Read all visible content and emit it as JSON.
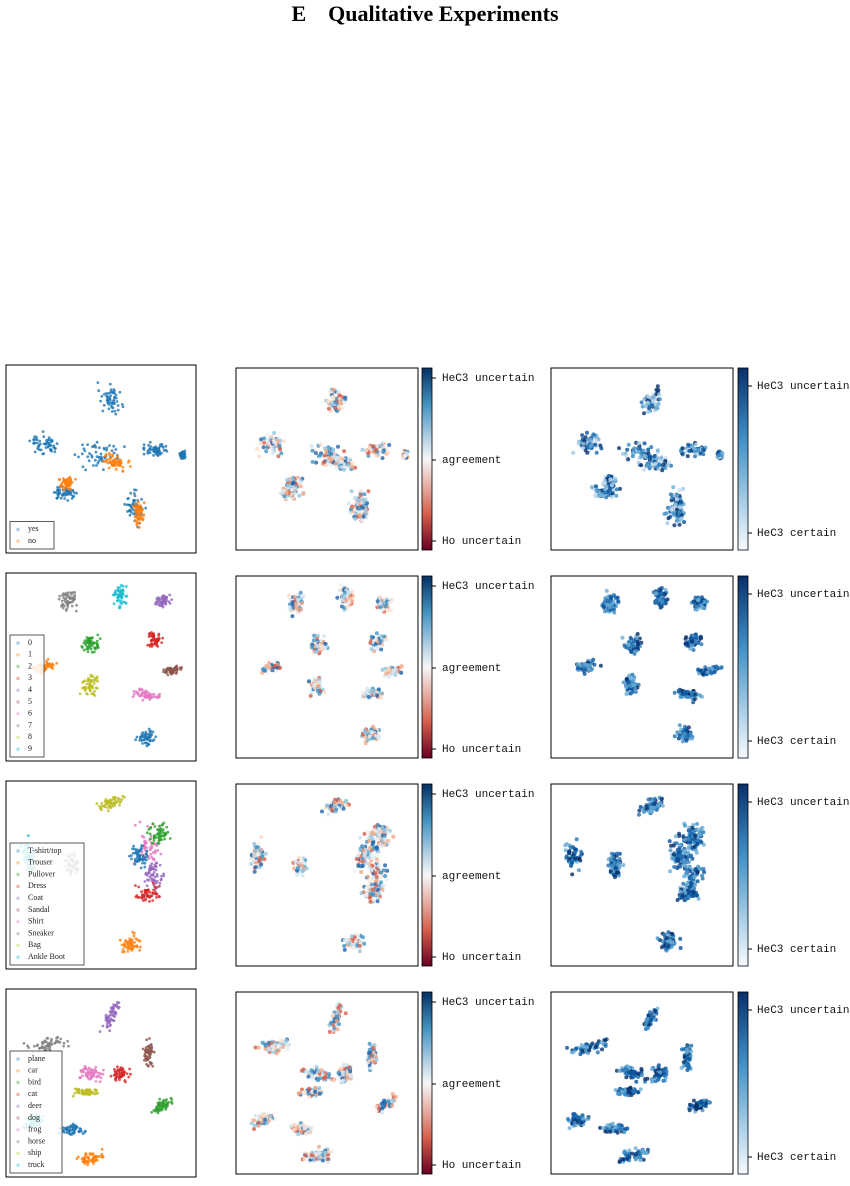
{
  "header": {
    "title": "E    Qualitative Experiments"
  },
  "rows": [
    {
      "legend": [
        "yes",
        "no"
      ]
    },
    {
      "legend": [
        "0",
        "1",
        "2",
        "3",
        "4",
        "5",
        "6",
        "7",
        "8",
        "9"
      ]
    },
    {
      "legend": [
        "T-shirt/top",
        "Trouser",
        "Pullover",
        "Dress",
        "Coat",
        "Sandal",
        "Shirt",
        "Sneaker",
        "Bag",
        "Ankle Boot"
      ]
    },
    {
      "legend": [
        "plane",
        "car",
        "bird",
        "cat",
        "deer",
        "dog",
        "frog",
        "horse",
        "ship",
        "truck"
      ]
    }
  ],
  "colorbars": {
    "disagreement": {
      "top": "HeC3 uncertain",
      "middle": "agreement",
      "bottom": "Ho uncertain"
    },
    "certainty": {
      "top": "HeC3 uncertain",
      "bottom": "HeC3 certain"
    }
  }
}
